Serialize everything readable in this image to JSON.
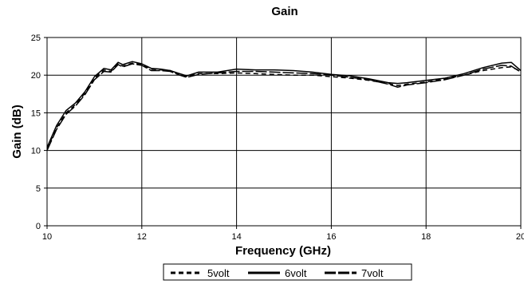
{
  "chart_data": {
    "type": "line",
    "title": "Gain",
    "xlabel": "Frequency (GHz)",
    "ylabel": "Gain (dB)",
    "xlim": [
      10,
      20
    ],
    "ylim": [
      0,
      25
    ],
    "x_ticks": [
      "10",
      "12",
      "14",
      "16",
      "18",
      "20"
    ],
    "y_ticks": [
      "0",
      "5",
      "10",
      "15",
      "20",
      "25"
    ],
    "grid": "horizontal and vertical major gridlines",
    "legend_position": "bottom-center",
    "series": [
      {
        "name": "5volt",
        "style": "dashed",
        "color": "#000000",
        "x": [
          10,
          10.2,
          10.4,
          10.6,
          10.8,
          11.0,
          11.2,
          11.35,
          11.5,
          11.6,
          11.8,
          12.0,
          12.2,
          12.4,
          12.6,
          12.8,
          12.95,
          13.2,
          13.6,
          14.0,
          14.4,
          14.8,
          15.2,
          15.6,
          16.0,
          16.4,
          16.8,
          17.2,
          17.4,
          17.6,
          18.0,
          18.4,
          18.8,
          19.2,
          19.6,
          19.8,
          20.0
        ],
        "y": [
          10.2,
          13.0,
          15.0,
          16.1,
          17.6,
          19.6,
          20.7,
          20.5,
          21.5,
          21.2,
          21.6,
          21.4,
          20.8,
          20.7,
          20.6,
          20.1,
          19.8,
          20.2,
          20.2,
          20.3,
          20.2,
          20.1,
          20.0,
          20.0,
          19.8,
          19.6,
          19.3,
          18.9,
          18.6,
          18.8,
          19.1,
          19.5,
          20.0,
          20.6,
          21.0,
          21.1,
          20.5
        ]
      },
      {
        "name": "6volt",
        "style": "solid",
        "color": "#000000",
        "x": [
          10,
          10.2,
          10.4,
          10.6,
          10.8,
          11.0,
          11.2,
          11.35,
          11.5,
          11.6,
          11.8,
          12.0,
          12.2,
          12.4,
          12.6,
          12.8,
          12.95,
          13.2,
          13.6,
          14.0,
          14.4,
          14.8,
          15.2,
          15.6,
          16.0,
          16.4,
          16.8,
          17.2,
          17.4,
          17.6,
          18.0,
          18.4,
          18.8,
          19.2,
          19.6,
          19.8,
          20.0
        ],
        "y": [
          10.4,
          13.3,
          15.3,
          16.3,
          17.8,
          19.8,
          20.9,
          20.7,
          21.7,
          21.4,
          21.8,
          21.5,
          20.9,
          20.8,
          20.6,
          20.2,
          19.9,
          20.4,
          20.4,
          20.8,
          20.7,
          20.7,
          20.6,
          20.4,
          20.1,
          19.9,
          19.5,
          19.0,
          18.9,
          19.0,
          19.3,
          19.6,
          20.2,
          21.0,
          21.6,
          21.7,
          20.6
        ]
      },
      {
        "name": "7volt",
        "style": "long-dash",
        "color": "#000000",
        "x": [
          10,
          10.2,
          10.4,
          10.6,
          10.8,
          11.0,
          11.2,
          11.35,
          11.5,
          11.6,
          11.8,
          12.0,
          12.2,
          12.4,
          12.6,
          12.8,
          12.95,
          13.2,
          13.6,
          14.0,
          14.4,
          14.8,
          15.2,
          15.6,
          16.0,
          16.4,
          16.8,
          17.2,
          17.4,
          17.6,
          18.0,
          18.4,
          18.8,
          19.2,
          19.6,
          19.8,
          20.0
        ],
        "y": [
          10.0,
          12.8,
          14.8,
          15.9,
          17.4,
          19.4,
          20.5,
          20.4,
          21.4,
          21.1,
          21.5,
          21.3,
          20.6,
          20.6,
          20.5,
          20.0,
          19.7,
          20.1,
          20.3,
          20.5,
          20.5,
          20.4,
          20.3,
          20.2,
          20.0,
          19.7,
          19.4,
          18.8,
          18.4,
          18.7,
          19.0,
          19.4,
          20.0,
          20.8,
          21.3,
          21.2,
          20.4
        ]
      }
    ]
  }
}
